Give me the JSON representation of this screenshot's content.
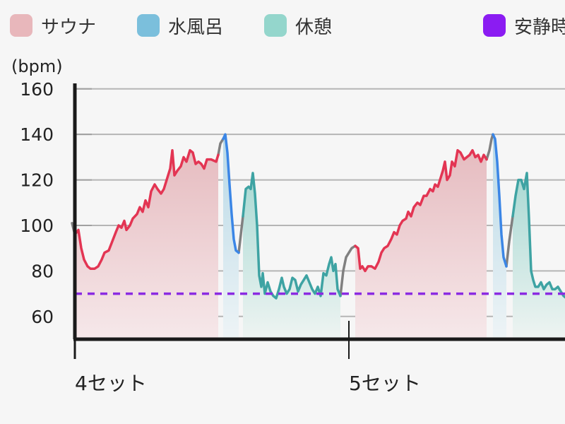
{
  "legend": {
    "items": [
      {
        "label": "サウナ",
        "color": "#e8b7bb"
      },
      {
        "label": "水風呂",
        "color": "#7bbfdc"
      },
      {
        "label": "休憩",
        "color": "#94d6cc"
      },
      {
        "label": "安静時",
        "color": "#8b1cf2"
      }
    ]
  },
  "colors": {
    "sauna_line": "#e33553",
    "cold_line": "#3b86e6",
    "rest_line": "#3ea3a3",
    "transition_line": "#808080",
    "resting_line": "#8b2be2"
  },
  "chart_data": {
    "type": "area",
    "ylabel": "(bpm)",
    "ylim": [
      50,
      168
    ],
    "yticks": [
      60,
      80,
      100,
      120,
      140,
      160
    ],
    "xlim": [
      0,
      800
    ],
    "x_sets": [
      {
        "label": "4セット",
        "x": 0
      },
      {
        "label": "5セット",
        "x": 388
      }
    ],
    "resting_hr": 70,
    "series": [
      {
        "name": "サウナ",
        "phase": "sauna",
        "points": [
          [
            0,
            96
          ],
          [
            5,
            98
          ],
          [
            9,
            90
          ],
          [
            13,
            85
          ],
          [
            18,
            82
          ],
          [
            22,
            81
          ],
          [
            28,
            81
          ],
          [
            33,
            82
          ],
          [
            38,
            85
          ],
          [
            42,
            88
          ],
          [
            48,
            89
          ],
          [
            53,
            93
          ],
          [
            58,
            97
          ],
          [
            62,
            100
          ],
          [
            66,
            99
          ],
          [
            70,
            102
          ],
          [
            73,
            98
          ],
          [
            78,
            100
          ],
          [
            82,
            103
          ],
          [
            88,
            105
          ],
          [
            92,
            108
          ],
          [
            96,
            106
          ],
          [
            100,
            111
          ],
          [
            104,
            108
          ],
          [
            108,
            115
          ],
          [
            113,
            118
          ],
          [
            117,
            116
          ],
          [
            122,
            114
          ],
          [
            126,
            116
          ],
          [
            131,
            121
          ],
          [
            135,
            125
          ],
          [
            138,
            133
          ],
          [
            141,
            122
          ],
          [
            145,
            124
          ],
          [
            150,
            126
          ],
          [
            154,
            130
          ],
          [
            158,
            128
          ],
          [
            163,
            133
          ],
          [
            167,
            132
          ],
          [
            171,
            127
          ],
          [
            175,
            128
          ],
          [
            179,
            127
          ],
          [
            183,
            125
          ],
          [
            187,
            129
          ],
          [
            193,
            129
          ],
          [
            200,
            128
          ],
          [
            203,
            131
          ]
        ]
      },
      {
        "name": "水風呂",
        "phase": "cold",
        "points": [
          [
            210,
            138
          ],
          [
            213,
            140
          ],
          [
            216,
            132
          ],
          [
            219,
            118
          ],
          [
            222,
            105
          ],
          [
            225,
            94
          ],
          [
            228,
            89
          ],
          [
            232,
            88
          ]
        ]
      },
      {
        "name": "休憩",
        "phase": "rest",
        "points": [
          [
            238,
            104
          ],
          [
            242,
            116
          ],
          [
            246,
            117
          ],
          [
            249,
            116
          ],
          [
            252,
            123
          ],
          [
            255,
            114
          ],
          [
            258,
            100
          ],
          [
            261,
            78
          ],
          [
            264,
            73
          ],
          [
            266,
            79
          ],
          [
            269,
            70
          ],
          [
            273,
            75
          ],
          [
            277,
            71
          ],
          [
            281,
            69
          ],
          [
            285,
            68
          ],
          [
            289,
            72
          ],
          [
            293,
            77
          ],
          [
            296,
            73
          ],
          [
            300,
            70
          ],
          [
            304,
            72
          ],
          [
            308,
            77
          ],
          [
            312,
            76
          ],
          [
            316,
            71
          ],
          [
            320,
            74
          ],
          [
            324,
            76
          ],
          [
            328,
            78
          ],
          [
            332,
            75
          ],
          [
            336,
            72
          ],
          [
            340,
            70
          ],
          [
            344,
            73
          ],
          [
            348,
            69
          ],
          [
            352,
            79
          ],
          [
            356,
            78
          ],
          [
            360,
            83
          ],
          [
            363,
            86
          ],
          [
            366,
            80
          ],
          [
            369,
            83
          ],
          [
            372,
            72
          ],
          [
            376,
            69
          ]
        ]
      },
      {
        "name": "サウナ",
        "phase": "sauna",
        "points": [
          [
            397,
            91
          ],
          [
            401,
            90
          ],
          [
            404,
            81
          ],
          [
            407,
            82
          ],
          [
            411,
            80
          ],
          [
            415,
            82
          ],
          [
            420,
            82
          ],
          [
            425,
            81
          ],
          [
            430,
            84
          ],
          [
            434,
            88
          ],
          [
            438,
            90
          ],
          [
            443,
            91
          ],
          [
            448,
            94
          ],
          [
            452,
            97
          ],
          [
            456,
            96
          ],
          [
            460,
            100
          ],
          [
            464,
            102
          ],
          [
            469,
            103
          ],
          [
            472,
            106
          ],
          [
            476,
            104
          ],
          [
            480,
            108
          ],
          [
            485,
            110
          ],
          [
            489,
            109
          ],
          [
            494,
            113
          ],
          [
            498,
            113
          ],
          [
            503,
            116
          ],
          [
            507,
            115
          ],
          [
            510,
            118
          ],
          [
            514,
            117
          ],
          [
            518,
            121
          ],
          [
            521,
            124
          ],
          [
            524,
            128
          ],
          [
            527,
            120
          ],
          [
            531,
            122
          ],
          [
            534,
            128
          ],
          [
            538,
            126
          ],
          [
            542,
            133
          ],
          [
            546,
            132
          ],
          [
            551,
            129
          ],
          [
            555,
            130
          ],
          [
            559,
            131
          ],
          [
            563,
            133
          ],
          [
            567,
            130
          ],
          [
            571,
            131
          ],
          [
            575,
            128
          ],
          [
            579,
            131
          ],
          [
            583,
            129
          ]
        ]
      },
      {
        "name": "水風呂",
        "phase": "cold",
        "points": [
          [
            592,
            140
          ],
          [
            595,
            138
          ],
          [
            598,
            128
          ],
          [
            601,
            113
          ],
          [
            604,
            96
          ],
          [
            607,
            86
          ],
          [
            611,
            82
          ]
        ]
      },
      {
        "name": "休憩",
        "phase": "rest",
        "points": [
          [
            620,
            104
          ],
          [
            624,
            113
          ],
          [
            628,
            120
          ],
          [
            632,
            120
          ],
          [
            636,
            116
          ],
          [
            640,
            123
          ],
          [
            643,
            103
          ],
          [
            646,
            80
          ],
          [
            649,
            76
          ],
          [
            652,
            73
          ],
          [
            656,
            73
          ],
          [
            660,
            75
          ],
          [
            664,
            72
          ],
          [
            668,
            74
          ],
          [
            672,
            75
          ],
          [
            676,
            72
          ],
          [
            680,
            72
          ],
          [
            684,
            73
          ],
          [
            688,
            71
          ],
          [
            692,
            69
          ],
          [
            696,
            68
          ]
        ]
      }
    ],
    "transitions": [
      {
        "points": [
          [
            -4,
            101
          ],
          [
            0,
            96
          ]
        ]
      },
      {
        "points": [
          [
            203,
            131
          ],
          [
            206,
            136
          ],
          [
            210,
            138
          ]
        ]
      },
      {
        "points": [
          [
            232,
            88
          ],
          [
            235,
            96
          ],
          [
            238,
            104
          ]
        ]
      },
      {
        "points": [
          [
            376,
            69
          ],
          [
            380,
            80
          ],
          [
            384,
            86
          ],
          [
            388,
            88
          ],
          [
            392,
            90
          ],
          [
            397,
            91
          ]
        ]
      },
      {
        "points": [
          [
            583,
            129
          ],
          [
            587,
            133
          ],
          [
            590,
            138
          ],
          [
            592,
            140
          ]
        ]
      },
      {
        "points": [
          [
            611,
            82
          ],
          [
            615,
            93
          ],
          [
            620,
            104
          ]
        ]
      }
    ]
  }
}
